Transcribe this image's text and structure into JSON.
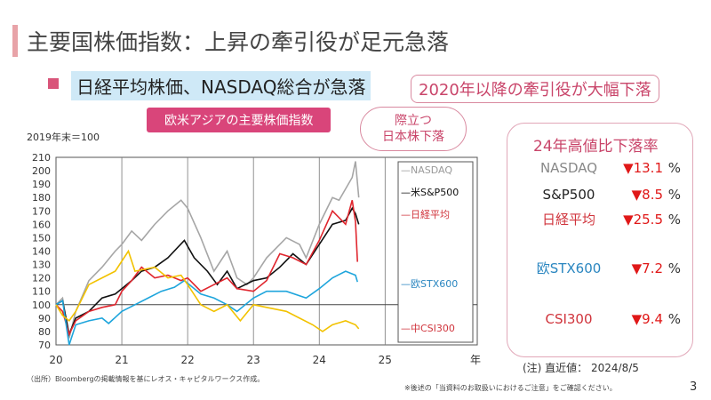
{
  "title": "主要国株価指数：上昇の牽引役が足元急落",
  "subtitle": "日経平均株価、NASDAQ総合が急落",
  "callout": "2020年以降の牽引役が大幅下落",
  "badge": "欧米アジアの主要株価指数",
  "cloud": [
    "際立つ",
    "日本株下落"
  ],
  "source": "（出所）Bloombergの掲載情報を基にレオス・キャピタルワークス作成。",
  "panel": {
    "title": "24年高値比下落率",
    "rows": [
      {
        "name": "NASDAQ",
        "value": "▼13.1",
        "unit": "%",
        "color": "#888888"
      },
      {
        "name": "S&P500",
        "value": "▼8.5",
        "unit": "%",
        "color": "#222222"
      },
      {
        "name": "日経平均",
        "value": "▼25.5",
        "unit": "%",
        "color": "#d0343c"
      },
      {
        "name": "欧STX600",
        "value": "▼7.2",
        "unit": "%",
        "color": "#2a86c0"
      },
      {
        "name": "CSI300",
        "value": "▼9.4",
        "unit": "%",
        "color": "#d0343c"
      }
    ]
  },
  "note": "(注) 直近値： 2024/8/5",
  "disclaimer": "※後述の「当資料のお取扱いにおけるご注意」をご確認ください。",
  "page_number": "3",
  "chart_data": {
    "type": "line",
    "ylabel": "2019年末＝100",
    "xlabel": "年",
    "ylim": [
      70,
      210
    ],
    "yticks": [
      70,
      80,
      90,
      100,
      110,
      120,
      130,
      140,
      150,
      160,
      170,
      180,
      190,
      200,
      210
    ],
    "xlim": [
      20,
      26.4
    ],
    "xticks": [
      "20",
      "21",
      "22",
      "23",
      "24",
      "25"
    ],
    "legend": "right",
    "reference_line": 100,
    "series": [
      {
        "name": "NASDAQ",
        "legend": "—NASDAQ",
        "color": "#a6a6a6",
        "x": [
          20,
          20.1,
          20.2,
          20.3,
          20.5,
          20.7,
          20.9,
          21,
          21.15,
          21.3,
          21.5,
          21.7,
          21.9,
          22,
          22.2,
          22.4,
          22.6,
          22.75,
          22.9,
          23,
          23.2,
          23.5,
          23.7,
          23.8,
          24,
          24.2,
          24.3,
          24.5,
          24.55,
          24.6
        ],
        "y": [
          100,
          105,
          75,
          95,
          118,
          128,
          140,
          145,
          155,
          148,
          160,
          170,
          178,
          172,
          150,
          125,
          140,
          120,
          115,
          120,
          135,
          150,
          145,
          135,
          160,
          180,
          178,
          195,
          207,
          180
        ]
      },
      {
        "name": "米S&P500",
        "legend": "—米S&P500",
        "color": "#111111",
        "x": [
          20,
          20.1,
          20.2,
          20.3,
          20.5,
          20.7,
          20.9,
          21,
          21.15,
          21.3,
          21.5,
          21.7,
          21.95,
          22.1,
          22.3,
          22.45,
          22.6,
          22.75,
          23,
          23.2,
          23.4,
          23.6,
          23.8,
          24,
          24.2,
          24.4,
          24.5,
          24.55,
          24.6
        ],
        "y": [
          100,
          103,
          78,
          90,
          95,
          105,
          108,
          112,
          118,
          125,
          128,
          135,
          148,
          135,
          125,
          115,
          125,
          112,
          118,
          120,
          128,
          138,
          130,
          145,
          160,
          163,
          172,
          168,
          160
        ]
      },
      {
        "name": "日経平均",
        "legend": "—日経平均",
        "color": "#e0262e",
        "x": [
          20,
          20.1,
          20.2,
          20.3,
          20.5,
          20.7,
          20.9,
          21,
          21.15,
          21.3,
          21.5,
          21.7,
          21.9,
          22,
          22.2,
          22.4,
          22.6,
          22.75,
          23,
          23.2,
          23.4,
          23.6,
          23.8,
          24,
          24.2,
          24.4,
          24.5,
          24.55,
          24.58
        ],
        "y": [
          100,
          95,
          78,
          88,
          95,
          98,
          100,
          110,
          118,
          128,
          120,
          122,
          118,
          120,
          110,
          115,
          120,
          112,
          110,
          118,
          138,
          135,
          130,
          148,
          170,
          160,
          178,
          162,
          132
        ]
      },
      {
        "name": "欧STX600",
        "legend": "—欧STX600",
        "color": "#1ea5dc",
        "x": [
          20,
          20.1,
          20.2,
          20.3,
          20.5,
          20.7,
          20.8,
          21,
          21.2,
          21.4,
          21.6,
          21.8,
          21.95,
          22.2,
          22.4,
          22.6,
          22.75,
          23,
          23.2,
          23.5,
          23.8,
          24,
          24.2,
          24.4,
          24.55,
          24.58
        ],
        "y": [
          100,
          103,
          70,
          85,
          88,
          90,
          86,
          95,
          100,
          105,
          110,
          113,
          118,
          108,
          105,
          100,
          95,
          105,
          110,
          110,
          105,
          112,
          120,
          125,
          122,
          117
        ]
      },
      {
        "name": "中CSI300",
        "legend": "—中CSI300",
        "color": "#f2c200",
        "x": [
          20,
          20.1,
          20.2,
          20.3,
          20.5,
          20.7,
          20.9,
          21.1,
          21.2,
          21.5,
          21.7,
          21.9,
          22,
          22.2,
          22.4,
          22.6,
          22.8,
          23,
          23.2,
          23.5,
          23.7,
          23.9,
          24.05,
          24.2,
          24.4,
          24.55,
          24.6
        ],
        "y": [
          100,
          92,
          88,
          95,
          115,
          120,
          125,
          140,
          125,
          128,
          120,
          122,
          115,
          100,
          95,
          100,
          88,
          100,
          98,
          95,
          90,
          85,
          80,
          85,
          88,
          85,
          82
        ]
      }
    ]
  }
}
